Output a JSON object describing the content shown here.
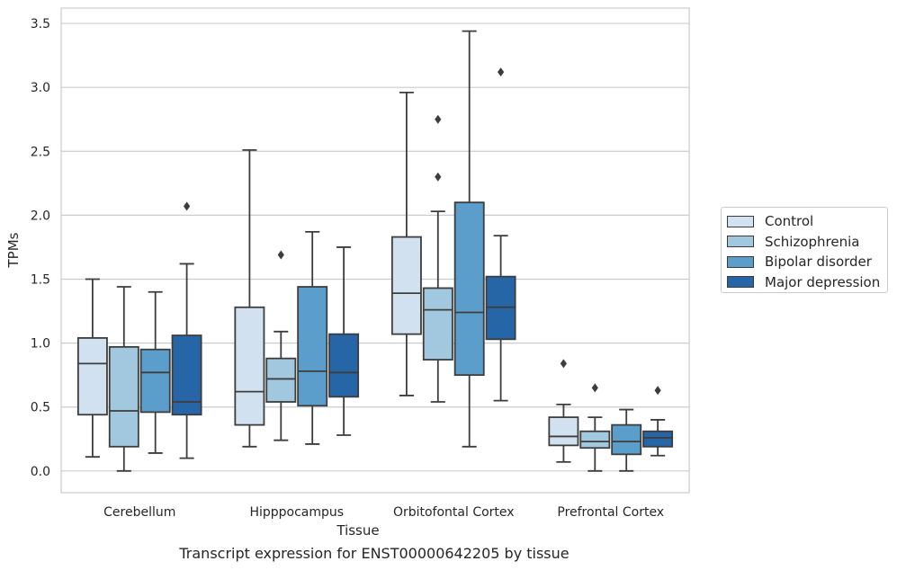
{
  "caption": "Transcript expression for ENST00000642205 by tissue",
  "chart_data": {
    "type": "box",
    "title": "",
    "xlabel": "Tissue",
    "ylabel": "TPMs",
    "ylim": [
      -0.17,
      3.62
    ],
    "yticks": [
      "0.0",
      "0.5",
      "1.0",
      "1.5",
      "2.0",
      "2.5",
      "3.0",
      "3.5"
    ],
    "grid": "horizontal",
    "legend_position": "right",
    "categories": [
      "Cerebellum",
      "Hipppocampus",
      "Orbitofontal Cortex",
      "Prefrontal Cortex"
    ],
    "series": [
      {
        "name": "Control",
        "color": "#d1e1ef",
        "boxes": [
          {
            "whislo": 0.11,
            "q1": 0.44,
            "med": 0.84,
            "q3": 1.04,
            "whishi": 1.5,
            "fliers": []
          },
          {
            "whislo": 0.19,
            "q1": 0.36,
            "med": 0.62,
            "q3": 1.28,
            "whishi": 2.51,
            "fliers": []
          },
          {
            "whislo": 0.59,
            "q1": 1.07,
            "med": 1.39,
            "q3": 1.83,
            "whishi": 2.96,
            "fliers": []
          },
          {
            "whislo": 0.07,
            "q1": 0.2,
            "med": 0.27,
            "q3": 0.42,
            "whishi": 0.52,
            "fliers": [
              0.84
            ]
          }
        ]
      },
      {
        "name": "Schizophrenia",
        "color": "#a1c8df",
        "boxes": [
          {
            "whislo": 0.0,
            "q1": 0.19,
            "med": 0.47,
            "q3": 0.97,
            "whishi": 1.44,
            "fliers": []
          },
          {
            "whislo": 0.24,
            "q1": 0.54,
            "med": 0.72,
            "q3": 0.88,
            "whishi": 1.09,
            "fliers": [
              1.69
            ]
          },
          {
            "whislo": 0.54,
            "q1": 0.87,
            "med": 1.26,
            "q3": 1.43,
            "whishi": 2.03,
            "fliers": [
              2.3,
              2.75
            ]
          },
          {
            "whislo": 0.0,
            "q1": 0.18,
            "med": 0.23,
            "q3": 0.31,
            "whishi": 0.42,
            "fliers": [
              0.65
            ]
          }
        ]
      },
      {
        "name": "Bipolar disorder",
        "color": "#5b9ecb",
        "boxes": [
          {
            "whislo": 0.14,
            "q1": 0.46,
            "med": 0.77,
            "q3": 0.95,
            "whishi": 1.4,
            "fliers": []
          },
          {
            "whislo": 0.21,
            "q1": 0.51,
            "med": 0.78,
            "q3": 1.44,
            "whishi": 1.87,
            "fliers": []
          },
          {
            "whislo": 0.19,
            "q1": 0.75,
            "med": 1.24,
            "q3": 2.1,
            "whishi": 3.44,
            "fliers": []
          },
          {
            "whislo": 0.0,
            "q1": 0.13,
            "med": 0.23,
            "q3": 0.36,
            "whishi": 0.48,
            "fliers": []
          }
        ]
      },
      {
        "name": "Major depression",
        "color": "#2665a6",
        "boxes": [
          {
            "whislo": 0.1,
            "q1": 0.44,
            "med": 0.54,
            "q3": 1.06,
            "whishi": 1.62,
            "fliers": [
              2.07
            ]
          },
          {
            "whislo": 0.28,
            "q1": 0.58,
            "med": 0.77,
            "q3": 1.07,
            "whishi": 1.75,
            "fliers": []
          },
          {
            "whislo": 0.55,
            "q1": 1.03,
            "med": 1.28,
            "q3": 1.52,
            "whishi": 1.84,
            "fliers": [
              3.12
            ]
          },
          {
            "whislo": 0.12,
            "q1": 0.19,
            "med": 0.26,
            "q3": 0.31,
            "whishi": 0.4,
            "fliers": [
              0.63
            ]
          }
        ]
      }
    ]
  }
}
